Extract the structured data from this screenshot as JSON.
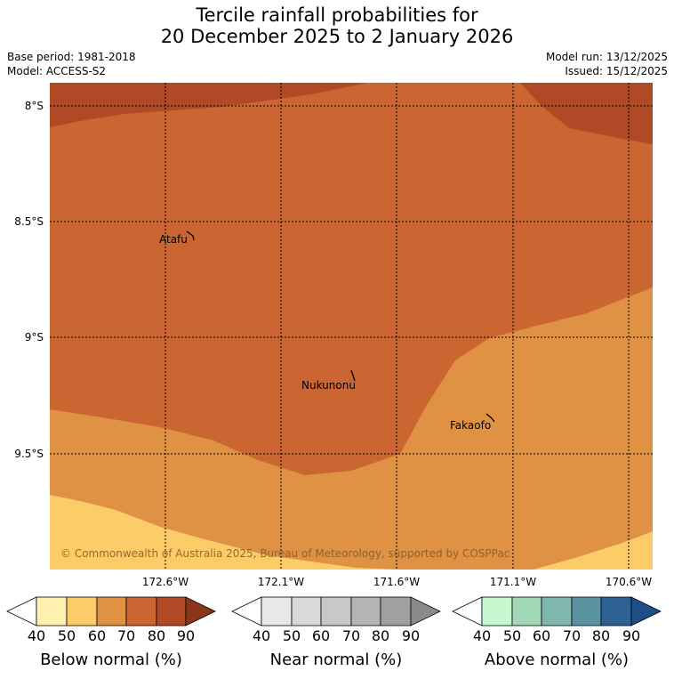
{
  "title": {
    "line1": "Tercile rainfall probabilities for",
    "line2": "20 December 2025 to 2 January 2026"
  },
  "meta": {
    "base_period": "Base period: 1981-2018",
    "model": "Model: ACCESS-S2",
    "model_run": "Model run: 13/12/2025",
    "issued": "Issued: 15/12/2025"
  },
  "map": {
    "lat_labels": [
      "8°S",
      "8.5°S",
      "9°S",
      "9.5°S"
    ],
    "lon_labels": [
      "172.6°W",
      "172.1°W",
      "171.6°W",
      "171.1°W",
      "170.6°W"
    ],
    "places": [
      {
        "name": "Atafu"
      },
      {
        "name": "Nukunonu"
      },
      {
        "name": "Fakaofo"
      }
    ],
    "copyright": "© Commonwealth of Australia 2025, Bureau of Meteorology, supported by COSPPac",
    "zone_colors": {
      "below_40": "#fccc68",
      "below_50": "#e09244",
      "below_60": "#cb6532",
      "below_70": "#b04a26"
    }
  },
  "legends": [
    {
      "name": "Below normal (%)",
      "ticks": [
        "40",
        "50",
        "60",
        "70",
        "80",
        "90"
      ],
      "colors": [
        "#ffffff",
        "#fff2b0",
        "#fccc68",
        "#e09244",
        "#cb6532",
        "#b04a26",
        "#8a3619"
      ]
    },
    {
      "name": "Near normal (%)",
      "ticks": [
        "40",
        "50",
        "60",
        "70",
        "80",
        "90"
      ],
      "colors": [
        "#ffffff",
        "#e8e8e8",
        "#d9d9d9",
        "#c8c8c8",
        "#b4b4b4",
        "#a0a0a0",
        "#8a8a8a"
      ]
    },
    {
      "name": "Above normal (%)",
      "ticks": [
        "40",
        "50",
        "60",
        "70",
        "80",
        "90"
      ],
      "colors": [
        "#ffffff",
        "#c8f8d0",
        "#a2d8b8",
        "#7fb7ae",
        "#5a92a0",
        "#2e6294",
        "#1c4e8a"
      ]
    }
  ]
}
